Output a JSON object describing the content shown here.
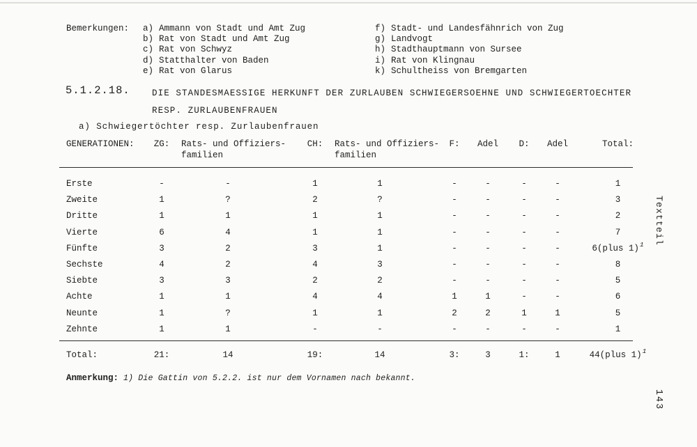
{
  "bemerkungen": {
    "label": "Bemerkungen:",
    "left_items": [
      {
        "key": "a)",
        "text": "Ammann von Stadt und Amt Zug"
      },
      {
        "key": "b)",
        "text": "Rat von Stadt und Amt Zug"
      },
      {
        "key": "c)",
        "text": "Rat von Schwyz"
      },
      {
        "key": "d)",
        "text": "Statthalter von Baden"
      },
      {
        "key": "e)",
        "text": "Rat von Glarus"
      }
    ],
    "right_items": [
      {
        "key": "f)",
        "text": "Stadt- und Landesfähnrich von Zug"
      },
      {
        "key": "g)",
        "text": "Landvogt"
      },
      {
        "key": "h)",
        "text": "Stadthauptmann von Sursee"
      },
      {
        "key": "i)",
        "text": "Rat von Klingnau"
      },
      {
        "key": "k)",
        "text": "Schultheiss von Bremgarten"
      }
    ]
  },
  "section": {
    "number": "5.1.2.18.",
    "title_line1": "DIE STANDESMAESSIGE HERKUNFT DER ZURLAUBEN SCHWIEGERSOEHNE UND SCHWIEGERTOECHTER",
    "title_line2": "RESP. ZURLAUBENFRAUEN",
    "subsection": "a) Schwiegertöchter resp. Zurlaubenfrauen"
  },
  "table": {
    "header": {
      "generationen": "GENERATIONEN:",
      "zg": "ZG:",
      "rats1_line1": "Rats- und Offiziers-",
      "rats1_line2": "familien",
      "ch": "CH:",
      "rats2_line1": "Rats- und Offiziers-",
      "rats2_line2": "familien",
      "f": "F:",
      "adel1": "Adel",
      "d": "D:",
      "adel2": "Adel",
      "total": "Total:"
    },
    "rows": [
      {
        "label": "Erste",
        "cells": [
          "-",
          "-",
          "1",
          "1",
          "-",
          "-",
          "-",
          "-",
          "1"
        ]
      },
      {
        "label": "Zweite",
        "cells": [
          "1",
          "?",
          "2",
          "?",
          "-",
          "-",
          "-",
          "-",
          "3"
        ]
      },
      {
        "label": "Dritte",
        "cells": [
          "1",
          "1",
          "1",
          "1",
          "-",
          "-",
          "-",
          "-",
          "2"
        ]
      },
      {
        "label": "Vierte",
        "cells": [
          "6",
          "4",
          "1",
          "1",
          "-",
          "-",
          "-",
          "-",
          "7"
        ]
      },
      {
        "label": "Fünfte",
        "cells": [
          "3",
          "2",
          "3",
          "1",
          "-",
          "-",
          "-",
          "-",
          "6(plus 1)^1"
        ]
      },
      {
        "label": "Sechste",
        "cells": [
          "4",
          "2",
          "4",
          "3",
          "-",
          "-",
          "-",
          "-",
          "8"
        ]
      },
      {
        "label": "Siebte",
        "cells": [
          "3",
          "3",
          "2",
          "2",
          "-",
          "-",
          "-",
          "-",
          "5"
        ]
      },
      {
        "label": "Achte",
        "cells": [
          "1",
          "1",
          "4",
          "4",
          "1",
          "1",
          "-",
          "-",
          "6"
        ]
      },
      {
        "label": "Neunte",
        "cells": [
          "1",
          "?",
          "1",
          "1",
          "2",
          "2",
          "1",
          "1",
          "5"
        ]
      },
      {
        "label": "Zehnte",
        "cells": [
          "1",
          "1",
          "-",
          "-",
          "-",
          "-",
          "-",
          "-",
          "1"
        ]
      }
    ],
    "total_row": {
      "label": "Total:",
      "cells": [
        "21:",
        "14",
        "19:",
        "14",
        "3:",
        "3",
        "1:",
        "1",
        "44(plus 1)^1"
      ]
    }
  },
  "anmerkung": {
    "label": "Anmerkung:",
    "text": "1) Die Gattin von 5.2.2. ist nur dem Vornamen nach bekannt."
  },
  "margin": {
    "side_label": "Textteil",
    "page_number": "143"
  },
  "colors": {
    "paper": "#fbfbf9",
    "ink": "#1e1e1e",
    "rule": "#2b2b2b"
  }
}
